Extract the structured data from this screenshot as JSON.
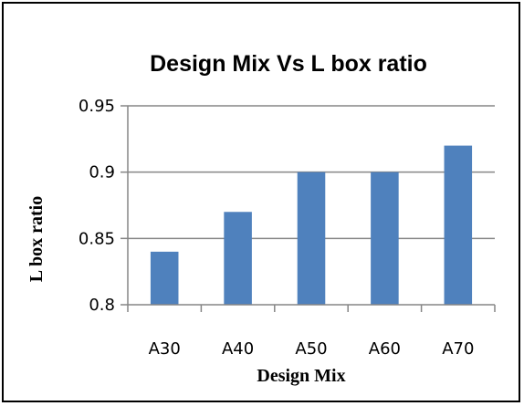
{
  "chart_data": {
    "type": "bar",
    "title": "Design Mix Vs L box ratio",
    "xlabel": "Design Mix",
    "ylabel": "L box ratio",
    "categories": [
      "A30",
      "A40",
      "A50",
      "A60",
      "A70"
    ],
    "values": [
      0.84,
      0.87,
      0.9,
      0.9,
      0.92
    ],
    "ylim": [
      0.8,
      0.95
    ],
    "yticks": [
      "0.8",
      "0.85",
      "0.9",
      "0.95"
    ],
    "grid": true,
    "legend": "none",
    "bar_color": "#4f81bd",
    "grid_color": "#868686"
  }
}
